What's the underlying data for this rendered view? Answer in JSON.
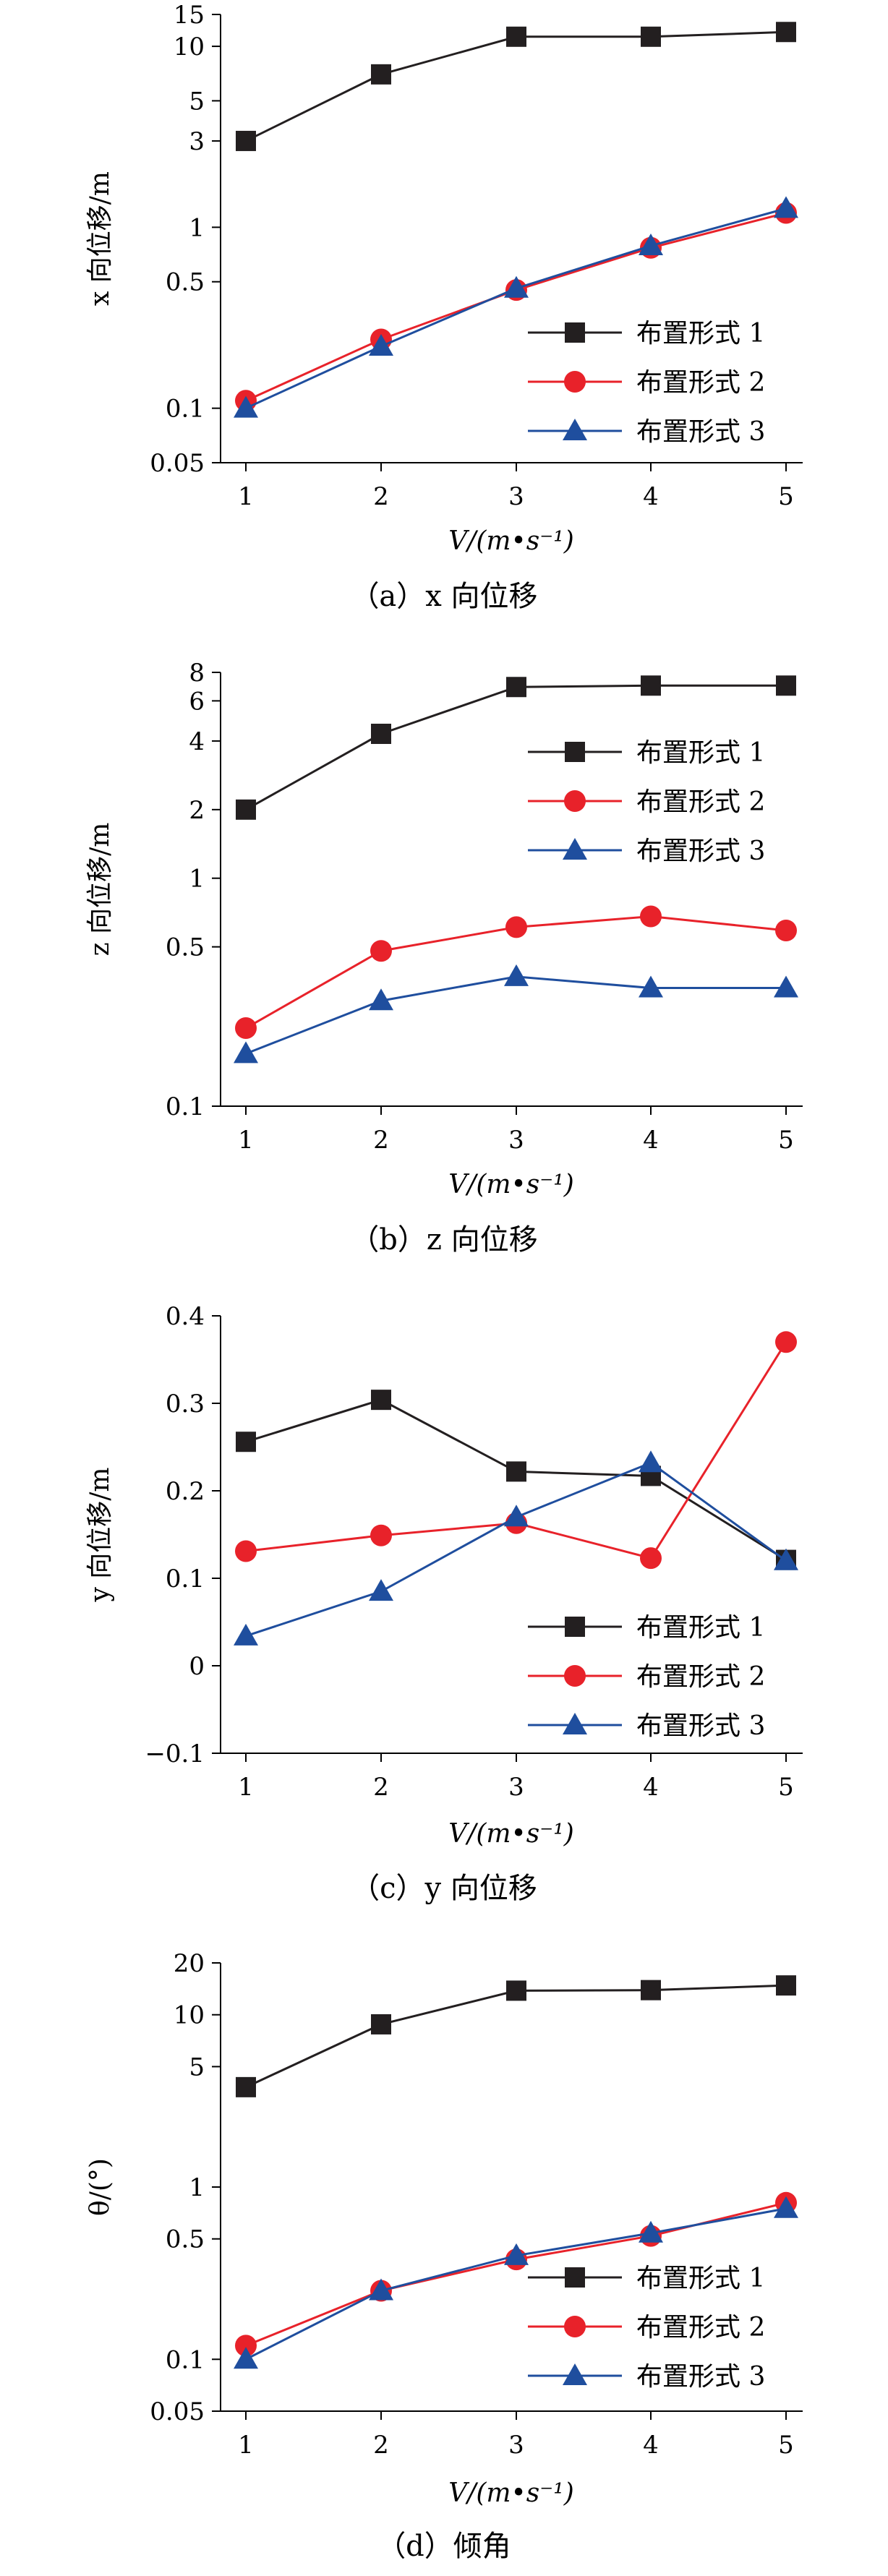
{
  "series_styles": [
    {
      "color": "#231f20",
      "marker": "square"
    },
    {
      "color": "#e8222a",
      "marker": "circle"
    },
    {
      "color": "#1f4e9e",
      "marker": "triangle"
    }
  ],
  "legend_labels": [
    "布置形式 1",
    "布置形式 2",
    "布置形式 3"
  ],
  "chart_data": [
    {
      "type": "line",
      "panel": "a",
      "caption": "（a）x 向位移",
      "xlabel": "V/(m•s⁻¹)",
      "ylabel": "x 向位移/m",
      "x": [
        1,
        2,
        3,
        4,
        5
      ],
      "xticks": [
        "1",
        "2",
        "3",
        "4",
        "5"
      ],
      "yscale": "log",
      "ylim": [
        0.05,
        15
      ],
      "yticks": [
        0.05,
        0.1,
        0.5,
        1,
        3,
        5,
        10,
        15
      ],
      "ytick_labels": [
        "0.05",
        "0.1",
        "0.5",
        "1",
        "3",
        "5",
        "10",
        "15"
      ],
      "legend_position": "bottom-right",
      "series": [
        {
          "name": "布置形式 1",
          "values": [
            3.0,
            7.0,
            11.3,
            11.3,
            12.0
          ]
        },
        {
          "name": "布置形式 2",
          "values": [
            0.11,
            0.24,
            0.45,
            0.77,
            1.2
          ]
        },
        {
          "name": "布置形式 3",
          "values": [
            0.1,
            0.22,
            0.46,
            0.79,
            1.27
          ]
        }
      ]
    },
    {
      "type": "line",
      "panel": "b",
      "caption": "（b）z 向位移",
      "xlabel": "V/(m•s⁻¹)",
      "ylabel": "z 向位移/m",
      "x": [
        1,
        2,
        3,
        4,
        5
      ],
      "xticks": [
        "1",
        "2",
        "3",
        "4",
        "5"
      ],
      "yscale": "log",
      "ylim": [
        0.1,
        8
      ],
      "yticks": [
        0.1,
        0.5,
        1,
        2,
        4,
        6,
        8
      ],
      "ytick_labels": [
        "0.1",
        "0.5",
        "1",
        "2",
        "4",
        "6",
        "8"
      ],
      "legend_position": "top-right",
      "series": [
        {
          "name": "布置形式 1",
          "values": [
            2.0,
            4.3,
            6.9,
            7.0,
            7.0
          ]
        },
        {
          "name": "布置形式 2",
          "values": [
            0.22,
            0.48,
            0.61,
            0.68,
            0.59
          ]
        },
        {
          "name": "布置形式 3",
          "values": [
            0.17,
            0.29,
            0.37,
            0.33,
            0.33
          ]
        }
      ]
    },
    {
      "type": "line",
      "panel": "c",
      "caption": "（c）y 向位移",
      "xlabel": "V/(m•s⁻¹)",
      "ylabel": "y 向位移/m",
      "x": [
        1,
        2,
        3,
        4,
        5
      ],
      "xticks": [
        "1",
        "2",
        "3",
        "4",
        "5"
      ],
      "yscale": "linear",
      "ylim": [
        -0.1,
        0.4
      ],
      "yticks": [
        -0.1,
        0,
        0.1,
        0.2,
        0.3,
        0.4
      ],
      "ytick_labels": [
        "−0.1",
        "0",
        "0.1",
        "0.2",
        "0.3",
        "0.4"
      ],
      "legend_position": "bottom-right",
      "series": [
        {
          "name": "布置形式 1",
          "values": [
            0.256,
            0.304,
            0.222,
            0.217,
            0.121
          ]
        },
        {
          "name": "布置形式 2",
          "values": [
            0.131,
            0.149,
            0.163,
            0.123,
            0.37
          ]
        },
        {
          "name": "布置形式 3",
          "values": [
            0.034,
            0.085,
            0.17,
            0.232,
            0.12
          ]
        }
      ]
    },
    {
      "type": "line",
      "panel": "d",
      "caption": "（d）倾角",
      "xlabel": "V/(m•s⁻¹)",
      "ylabel": "θ/(°)",
      "x": [
        1,
        2,
        3,
        4,
        5
      ],
      "xticks": [
        "1",
        "2",
        "3",
        "4",
        "5"
      ],
      "yscale": "log",
      "ylim": [
        0.05,
        20
      ],
      "yticks": [
        0.05,
        0.1,
        0.5,
        1,
        5,
        10,
        20
      ],
      "ytick_labels": [
        "0.05",
        "0.1",
        "0.5",
        "1",
        "5",
        "10",
        "20"
      ],
      "legend_position": "bottom-right",
      "series": [
        {
          "name": "布置形式 1",
          "values": [
            3.8,
            8.8,
            13.8,
            13.9,
            14.8
          ]
        },
        {
          "name": "布置形式 2",
          "values": [
            0.12,
            0.25,
            0.38,
            0.52,
            0.81
          ]
        },
        {
          "name": "布置形式 3",
          "values": [
            0.1,
            0.25,
            0.4,
            0.54,
            0.75
          ]
        }
      ]
    }
  ]
}
